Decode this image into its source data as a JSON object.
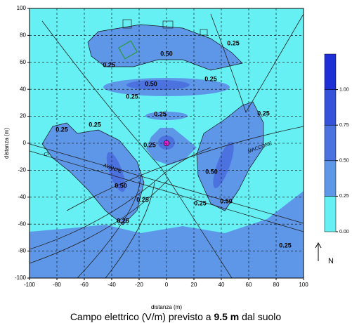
{
  "chart_data": {
    "type": "contour",
    "title_prefix": "Campo elettrico (V/m) previsto a",
    "title_emphasis": "9.5 m",
    "title_suffix": "dal suolo",
    "xlabel": "distanza (m)",
    "ylabel": "distanza (m)",
    "xlim": [
      -100,
      100
    ],
    "ylim": [
      -100,
      100
    ],
    "xticks": [
      -100,
      -80,
      -60,
      -40,
      -20,
      0,
      20,
      40,
      60,
      80,
      100
    ],
    "yticks": [
      100,
      80,
      60,
      40,
      20,
      0,
      -20,
      -40,
      -60,
      -80,
      -100
    ],
    "grid": true,
    "colorbar": {
      "clim": [
        0,
        1.25
      ],
      "ticks": [
        {
          "value": 0,
          "label": "0.00"
        },
        {
          "value": 0.25,
          "label": "0.25"
        },
        {
          "value": 0.5,
          "label": "0.50"
        },
        {
          "value": 0.75,
          "label": "0.75"
        },
        {
          "value": 1,
          "label": "1.00"
        }
      ],
      "colors": [
        "#66f0f4",
        "#5f97e8",
        "#4c72e0",
        "#3552db",
        "#1f2fd6"
      ]
    },
    "contour_labels": [
      "0.50",
      "0.25",
      "0.50",
      "0.25",
      "0.25",
      "0.25",
      "0.25",
      "0.25",
      "0.25",
      "0.25",
      "0.50",
      "0.25",
      "0.25",
      "0.50",
      "0.25",
      "0.50",
      "0.25",
      "0.25"
    ],
    "map_labels": [
      "CI",
      "AVANTE",
      "MACCONE"
    ],
    "north_label": "N"
  }
}
